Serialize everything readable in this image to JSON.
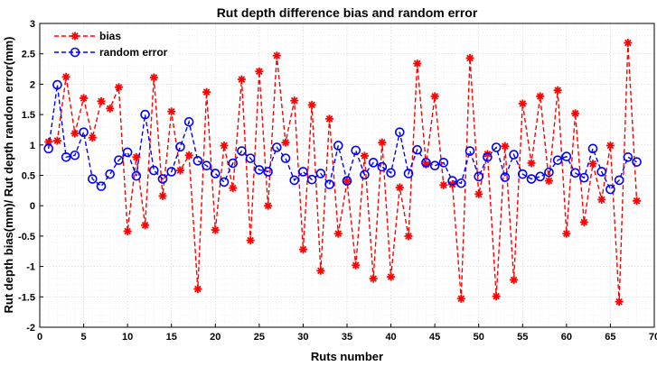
{
  "chart_data": {
    "type": "line",
    "title": "Rut depth difference bias and random error",
    "xlabel": "Ruts number",
    "ylabel": "Rut depth bias(mm)/ Rut depth random error(mm)",
    "xlim": [
      0,
      70
    ],
    "ylim": [
      -2,
      3
    ],
    "xticks": [
      0,
      5,
      10,
      15,
      20,
      25,
      30,
      35,
      40,
      45,
      50,
      55,
      60,
      65,
      70
    ],
    "yticks": [
      -2,
      -1.5,
      -1,
      -0.5,
      0,
      0.5,
      1,
      1.5,
      2,
      2.5,
      3
    ],
    "grid": true,
    "legend_position": "top-left",
    "x": [
      1,
      2,
      3,
      4,
      5,
      6,
      7,
      8,
      9,
      10,
      11,
      12,
      13,
      14,
      15,
      16,
      17,
      18,
      19,
      20,
      21,
      22,
      23,
      24,
      25,
      26,
      27,
      28,
      29,
      30,
      31,
      32,
      33,
      34,
      35,
      36,
      37,
      38,
      39,
      40,
      41,
      42,
      43,
      44,
      45,
      46,
      47,
      48,
      49,
      50,
      51,
      52,
      53,
      54,
      55,
      56,
      57,
      58,
      59,
      60,
      61,
      62,
      63,
      64,
      65,
      66,
      67,
      68
    ],
    "series": [
      {
        "name": "bias",
        "color": "#ff0000",
        "marker": "asterisk",
        "values": [
          1.05,
          1.07,
          2.12,
          1.19,
          1.77,
          1.12,
          1.72,
          1.6,
          1.95,
          -0.42,
          0.8,
          -0.32,
          2.11,
          0.16,
          1.55,
          0.58,
          0.83,
          -1.37,
          1.87,
          -0.4,
          0.99,
          0.29,
          2.08,
          -0.57,
          2.21,
          0.0,
          2.47,
          1.04,
          1.73,
          -0.72,
          1.66,
          -1.07,
          1.43,
          -0.46,
          0.4,
          -0.98,
          0.82,
          -1.2,
          1.04,
          -1.17,
          0.3,
          -0.5,
          2.34,
          0.68,
          1.8,
          0.34,
          0.35,
          -1.53,
          2.43,
          0.19,
          0.85,
          -1.49,
          0.98,
          -1.22,
          1.68,
          0.7,
          1.8,
          0.41,
          1.9,
          -0.46,
          1.52,
          -0.27,
          0.69,
          0.1,
          0.99,
          -1.58,
          2.68,
          0.08
        ]
      },
      {
        "name": "random error",
        "color": "#0000ff",
        "marker": "circle",
        "values": [
          0.94,
          1.99,
          0.8,
          0.83,
          1.21,
          0.44,
          0.32,
          0.52,
          0.75,
          0.88,
          0.49,
          1.5,
          0.58,
          0.44,
          0.56,
          0.97,
          1.38,
          0.74,
          0.66,
          0.53,
          0.39,
          0.7,
          0.9,
          0.78,
          0.59,
          0.56,
          0.96,
          0.78,
          0.42,
          0.56,
          0.43,
          0.53,
          0.35,
          0.99,
          0.41,
          0.91,
          0.51,
          0.71,
          0.64,
          0.54,
          1.21,
          0.53,
          0.92,
          0.71,
          0.66,
          0.71,
          0.41,
          0.37,
          0.9,
          0.48,
          0.8,
          0.96,
          0.47,
          0.84,
          0.52,
          0.44,
          0.48,
          0.55,
          0.75,
          0.81,
          0.54,
          0.46,
          0.94,
          0.56,
          0.27,
          0.42,
          0.8,
          0.72
        ]
      }
    ]
  }
}
